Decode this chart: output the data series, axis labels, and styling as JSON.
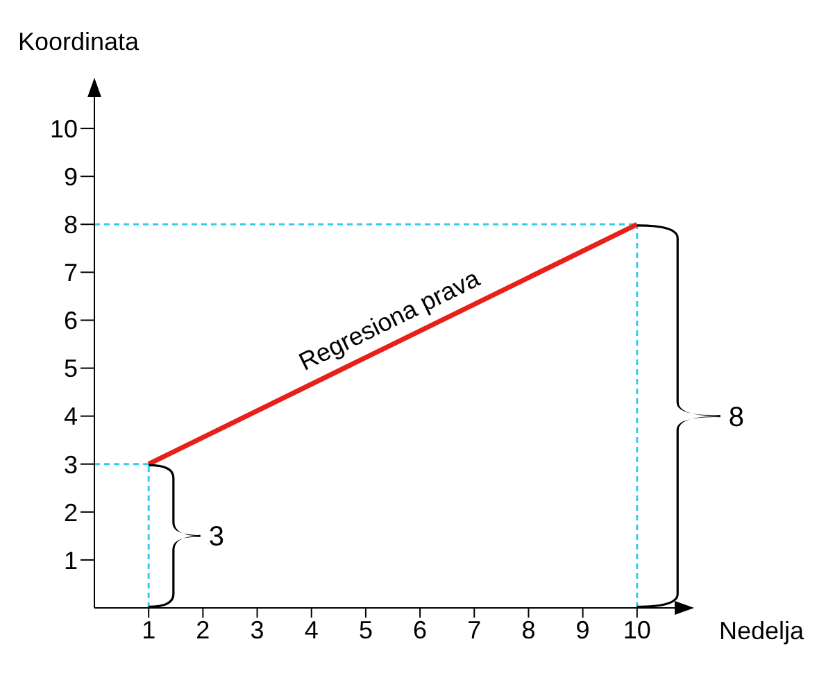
{
  "chart_data": {
    "type": "line",
    "xlabel": "Nedelja",
    "ylabel": "Koordinata",
    "x": [
      1,
      10
    ],
    "series": [
      {
        "name": "Regresiona prava",
        "color": "#e8201a",
        "values": [
          3,
          8
        ]
      }
    ],
    "xlim": [
      0,
      11
    ],
    "xticks": [
      1,
      2,
      3,
      4,
      5,
      6,
      7,
      8,
      9,
      10
    ],
    "ylim": [
      0,
      11
    ],
    "yticks": [
      1,
      2,
      3,
      4,
      5,
      6,
      7,
      8,
      9,
      10
    ],
    "grid": false,
    "legend": false,
    "marker": "none",
    "line_style": "solid",
    "ref_lines": [
      {
        "axis": "x",
        "value": 1,
        "color": "#33ccee",
        "line_style": "dashed"
      },
      {
        "axis": "x",
        "value": 10,
        "color": "#33ccee",
        "line_style": "dashed"
      },
      {
        "axis": "y",
        "value": 3,
        "color": "#33ccee",
        "line_style": "dashed"
      },
      {
        "axis": "y",
        "value": 8,
        "color": "#33ccee",
        "line_style": "dashed"
      }
    ],
    "annotations": [
      "3",
      "8"
    ]
  }
}
